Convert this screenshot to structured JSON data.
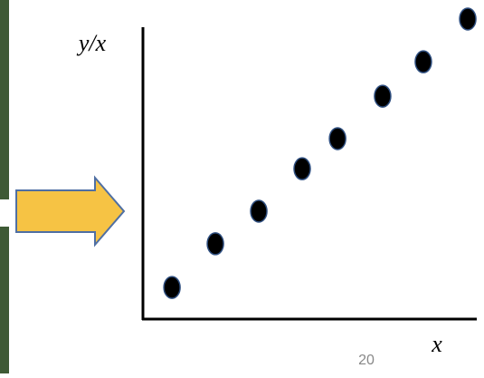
{
  "chart_data": {
    "type": "scatter",
    "xlabel": "x",
    "ylabel": "y/x",
    "x": [
      0.87,
      2.17,
      3.47,
      4.77,
      5.83,
      7.18,
      8.4,
      9.73
    ],
    "values": [
      1.02,
      2.43,
      3.48,
      4.85,
      5.82,
      7.19,
      8.3,
      9.68
    ],
    "xlim": [
      0,
      10
    ],
    "ylim": [
      0,
      10
    ],
    "color": "#000000"
  },
  "page_number": "20"
}
